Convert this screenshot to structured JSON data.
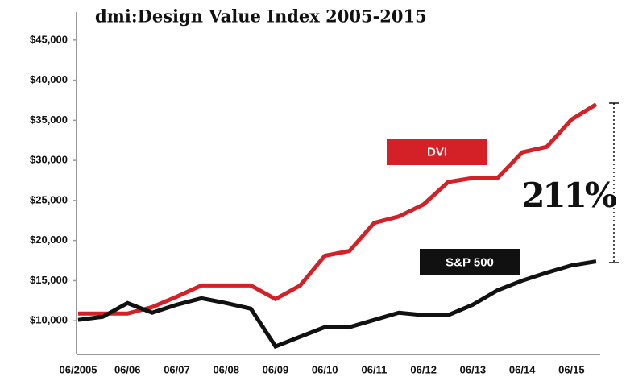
{
  "chart_data": {
    "type": "line",
    "title": "dmi:Design Value Index 2005-2015",
    "categories": [
      "06/2005",
      null,
      "06/06",
      null,
      "06/07",
      null,
      "06/08",
      null,
      "06/09",
      null,
      "06/10",
      null,
      "06/11",
      null,
      "06/12",
      null,
      "06/13",
      null,
      "06/14",
      null,
      "06/15",
      null
    ],
    "series": [
      {
        "name": "DVI",
        "color": "#d42027",
        "values": [
          10900,
          10900,
          10900,
          11700,
          13000,
          14400,
          14400,
          14400,
          12700,
          14400,
          18100,
          18700,
          22200,
          23000,
          24500,
          27300,
          27800,
          27800,
          31000,
          31700,
          35100,
          37000
        ]
      },
      {
        "name": "S&P 500",
        "color": "#111111",
        "values": [
          10100,
          10500,
          12200,
          11000,
          12000,
          12800,
          12200,
          11500,
          6800,
          8000,
          9200,
          9200,
          10100,
          11000,
          10700,
          10700,
          12000,
          13800,
          15000,
          16000,
          16900,
          17400
        ]
      }
    ],
    "annotation": "211%",
    "ylim": [
      5800,
      48500
    ],
    "yticks": [
      {
        "value": 10000,
        "label": "$10,000"
      },
      {
        "value": 15000,
        "label": "$15,000"
      },
      {
        "value": 20000,
        "label": "$20,000"
      },
      {
        "value": 25000,
        "label": "$25,000"
      },
      {
        "value": 30000,
        "label": "$30,000"
      },
      {
        "value": 35000,
        "label": "$35,000"
      },
      {
        "value": 40000,
        "label": "$40,000"
      },
      {
        "value": 45000,
        "label": "$45,000"
      }
    ],
    "grid": false
  }
}
